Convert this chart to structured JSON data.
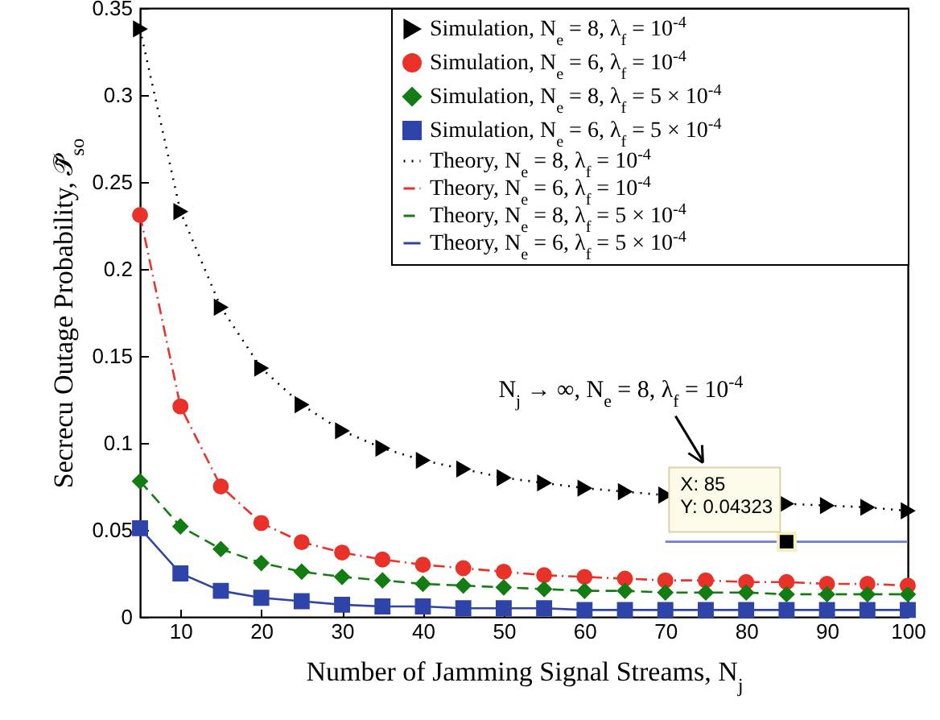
{
  "chart_data": {
    "type": "line",
    "xlabel": "Number of Jamming Signal Streams, N$_{j}$",
    "ylabel": "Secrecu Outage Probability, 𝒫̃$_{so}$",
    "x": [
      5,
      10,
      15,
      20,
      25,
      30,
      35,
      40,
      45,
      50,
      55,
      60,
      65,
      70,
      75,
      80,
      85,
      90,
      95,
      100
    ],
    "xlim": [
      5,
      100
    ],
    "xticks": [
      10,
      20,
      30,
      40,
      50,
      60,
      70,
      80,
      90,
      100
    ],
    "ylim": [
      0,
      0.35
    ],
    "yticks": [
      0,
      0.05,
      0.1,
      0.15,
      0.2,
      0.25,
      0.3,
      0.35
    ],
    "grid": false,
    "legend": "top right",
    "series": [
      {
        "type": "scatter",
        "marker": "triangle",
        "name": "Simulation, N$_{e}$ = 8, λ$_{f}$ = 10$^{-4}$",
        "color": "#000000",
        "values": [
          0.338,
          0.233,
          0.178,
          0.143,
          0.122,
          0.107,
          0.097,
          0.09,
          0.085,
          0.08,
          0.077,
          0.074,
          0.072,
          0.07,
          null,
          null,
          0.065,
          0.064,
          0.063,
          0.061
        ]
      },
      {
        "type": "scatter",
        "marker": "circle",
        "name": "Simulation, N$_{e}$ = 6, λ$_{f}$ = 10$^{-4}$",
        "color": "#e8322a",
        "values": [
          0.231,
          0.121,
          0.075,
          0.054,
          0.043,
          0.037,
          0.033,
          0.03,
          0.028,
          0.026,
          0.024,
          0.023,
          0.022,
          0.021,
          0.021,
          0.02,
          0.02,
          0.019,
          0.019,
          0.018
        ]
      },
      {
        "type": "scatter",
        "marker": "diamond",
        "name": "Simulation, N$_{e}$ = 8, λ$_{f}$ = 5 × 10$^{-4}$",
        "color": "#137d13",
        "values": [
          0.078,
          0.052,
          0.039,
          0.031,
          0.026,
          0.023,
          0.021,
          0.019,
          0.018,
          0.017,
          0.016,
          0.015,
          0.015,
          0.014,
          0.014,
          0.014,
          0.013,
          0.013,
          0.013,
          0.013
        ]
      },
      {
        "type": "scatter",
        "marker": "square",
        "name": "Simulation, N$_{e}$ = 6, λ$_{f}$ = 5 × 10$^{-4}$",
        "color": "#2e44a8",
        "values": [
          0.051,
          0.025,
          0.015,
          0.011,
          0.009,
          0.007,
          0.006,
          0.006,
          0.005,
          0.005,
          0.005,
          0.004,
          0.004,
          0.004,
          0.004,
          0.004,
          0.004,
          0.004,
          0.004,
          0.004
        ]
      },
      {
        "line_style": "dotted",
        "name": "Theory, N$_{e}$ = 8, λ$_{f}$ = 10$^{-4}$",
        "color": "#000000",
        "values": [
          0.338,
          0.233,
          0.178,
          0.143,
          0.122,
          0.107,
          0.097,
          0.09,
          0.085,
          0.08,
          0.077,
          0.074,
          0.072,
          0.07,
          null,
          null,
          0.065,
          0.064,
          0.063,
          0.061
        ]
      },
      {
        "line_style": "dashdot",
        "name": "Theory, N$_{e}$ = 6, λ$_{f}$ = 10$^{-4}$",
        "color": "#e8322a",
        "values": [
          0.231,
          0.121,
          0.075,
          0.054,
          0.043,
          0.037,
          0.033,
          0.03,
          0.028,
          0.026,
          0.024,
          0.023,
          0.022,
          0.021,
          0.021,
          0.02,
          0.02,
          0.019,
          0.019,
          0.018
        ]
      },
      {
        "line_style": "dashed",
        "name": "Theory, N$_{e}$ = 8, λ$_{f}$ = 5 × 10$^{-4}$",
        "color": "#137d13",
        "values": [
          0.078,
          0.052,
          0.039,
          0.031,
          0.026,
          0.023,
          0.021,
          0.019,
          0.018,
          0.017,
          0.016,
          0.015,
          0.015,
          0.014,
          0.014,
          0.014,
          0.013,
          0.013,
          0.013,
          0.013
        ]
      },
      {
        "line_style": "solid",
        "name": "Theory, N$_{e}$ = 6, λ$_{f}$ = 5 × 10$^{-4}$",
        "color": "#2e44a8",
        "values": [
          0.051,
          0.025,
          0.015,
          0.011,
          0.009,
          0.007,
          0.006,
          0.006,
          0.005,
          0.005,
          0.005,
          0.004,
          0.004,
          0.004,
          0.004,
          0.004,
          0.004,
          0.004,
          0.004,
          0.004
        ]
      },
      {
        "line_style": "solid",
        "color": "#6f80c8",
        "x": [
          70,
          100
        ],
        "values": [
          0.04323,
          0.04323
        ]
      },
      {
        "type": "scatter",
        "marker": "square",
        "color": "#000000",
        "x": [
          85
        ],
        "values": [
          0.04323
        ]
      }
    ],
    "annotations": [
      "N$_{j}$ → ∞, N$_{e}$ = 8, λ$_{f}$ = 10$^{-4}$",
      {
        "text": "X: 85\nY: 0.04323",
        "x": 85,
        "y": 0.04323
      }
    ]
  }
}
